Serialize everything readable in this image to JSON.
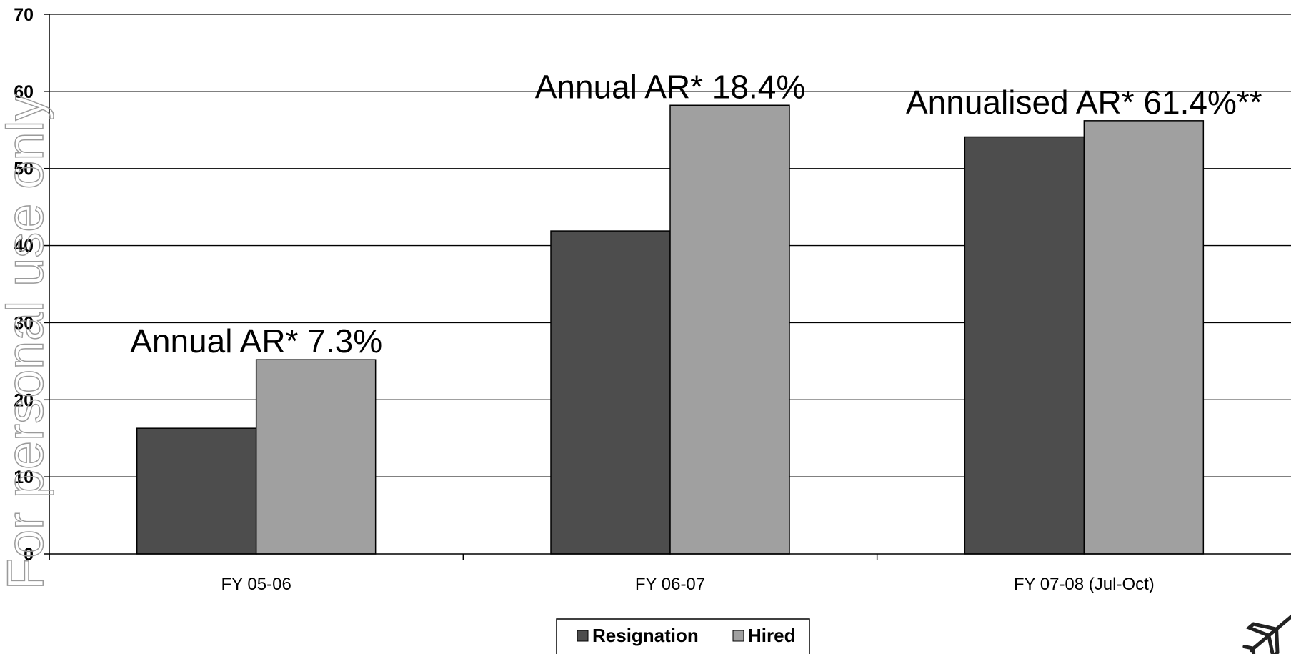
{
  "chart_data": {
    "type": "bar",
    "categories": [
      "FY 05-06",
      "FY 06-07",
      "FY 07-08 (Jul-Oct)"
    ],
    "series": [
      {
        "name": "Resignation",
        "color": "#4d4d4d",
        "values": [
          16.3,
          41.9,
          54.1
        ]
      },
      {
        "name": "Hired",
        "color": "#a0a0a0",
        "values": [
          25.2,
          58.2,
          56.2
        ]
      }
    ],
    "ylim": [
      0,
      70
    ],
    "yticks": [
      0,
      10,
      20,
      30,
      40,
      50,
      60,
      70
    ],
    "grid": true,
    "legend_position": "bottom-center",
    "annotations": [
      {
        "text": "Annual AR* 7.3%",
        "category": 0
      },
      {
        "text": "Annual AR* 18.4%",
        "category": 1
      },
      {
        "text": "Annualised AR* 61.4%**",
        "category": 2
      }
    ]
  },
  "watermark": {
    "text": "For personal use only"
  },
  "logo": {
    "icon": "airplane-icon"
  }
}
